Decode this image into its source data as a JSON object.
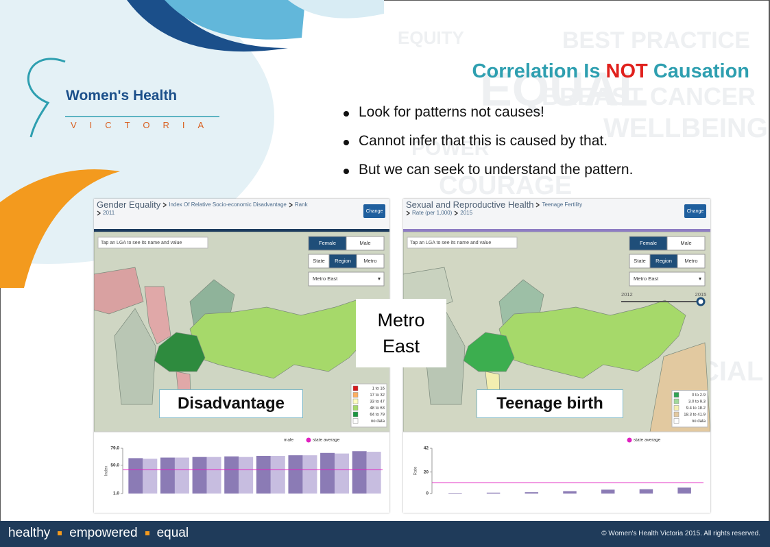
{
  "watermark": [
    "EQUITY",
    "BEST PRACTICE",
    "EQUAL",
    "BREAST CANCER",
    "WELLBEING",
    "POWER",
    "COURAGE",
    "CANCER",
    "SPECIAL"
  ],
  "logo": {
    "name": "Women's Health",
    "region": "VICTORIA"
  },
  "title": {
    "before": "Correlation Is",
    "emphasis": "NOT",
    "after": "Causation"
  },
  "bullets": [
    "Look for patterns not causes!",
    "Cannot infer that this is caused by that.",
    "But we can seek to understand the pattern."
  ],
  "map_label": "Metro East",
  "panels": [
    {
      "breadcrumb": [
        [
          "Gender Equality",
          "Index Of Relative Socio-economic Disadvantage",
          "Rank"
        ],
        [
          "2011"
        ]
      ],
      "button": "Change",
      "hint": "Tap an LGA to see its name and value",
      "sex": [
        "Female",
        "Male"
      ],
      "scope": [
        "State",
        "Region",
        "Metro"
      ],
      "region": "Metro East",
      "legend": [
        {
          "label": "1 to 16",
          "color": "#d7191c"
        },
        {
          "label": "17 to 32",
          "color": "#fdae61"
        },
        {
          "label": "33 to 47",
          "color": "#ffffbf"
        },
        {
          "label": "48 to 63",
          "color": "#a6d96a"
        },
        {
          "label": "64 to 79",
          "color": "#1a9641"
        },
        {
          "label": "no data",
          "color": "#ffffff"
        }
      ],
      "label": "Disadvantage",
      "chart": {
        "axis_title": "Index",
        "series_label": "male",
        "average_label": "state average",
        "ylim": [
          1,
          79
        ],
        "yticks": [
          {
            "value": 1,
            "label": "1.0"
          },
          {
            "value": 50,
            "label": "50.0"
          },
          {
            "value": 79,
            "label": "79.0"
          }
        ],
        "state_average": 42,
        "series": [
          {
            "color": "#8b7bb5",
            "values": [
              62,
              63,
              64,
              65,
              66,
              67,
              71,
              74
            ]
          },
          {
            "color": "#c7bde0",
            "values": [
              61,
              63,
              64,
              64,
              66,
              67,
              70,
              73
            ]
          }
        ]
      }
    },
    {
      "breadcrumb": [
        [
          "Sexual and Reproductive Health",
          "Teenage Fertility"
        ],
        [
          "Rate (per 1,000)",
          "2015"
        ]
      ],
      "button": "Change",
      "hint": "Tap an LGA to see its name and value",
      "sex": [
        "Female",
        "Male"
      ],
      "scope": [
        "State",
        "Region",
        "Metro"
      ],
      "region": "Metro East",
      "slider": [
        "2012",
        "2015"
      ],
      "legend": [
        {
          "label": "0 to 2.9",
          "color": "#31a354"
        },
        {
          "label": "3.0 to 9.3",
          "color": "#a1d99b"
        },
        {
          "label": "9.4 to 18.2",
          "color": "#f3eeb0"
        },
        {
          "label": "18.3 to 41.9",
          "color": "#e2c9a0"
        },
        {
          "label": "no data",
          "color": "#ffffff"
        }
      ],
      "label": "Teenage birth",
      "chart": {
        "axis_title": "Rate",
        "average_label": "state average",
        "ylim": [
          0,
          42
        ],
        "yticks": [
          0,
          20,
          42
        ],
        "state_average": 10,
        "series": [
          {
            "color": "#8b7bb5",
            "values": [
              0.5,
              0.8,
              1.2,
              2.2,
              3.6,
              4,
              5.5
            ]
          }
        ]
      }
    }
  ],
  "footer": {
    "motto": [
      "healthy",
      "empowered",
      "equal"
    ],
    "copyright": "© Women's Health Victoria 2015. All rights reserved."
  }
}
